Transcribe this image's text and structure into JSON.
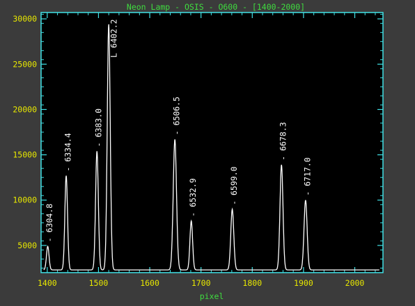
{
  "colors": {
    "background": "#3b3b3b",
    "plot_bg": "#000000",
    "frame": "#41e1e6",
    "title": "#3fdc3f",
    "tick_labels": "#e8e800",
    "xlabel": "#3fdc3f",
    "trace": "#ffffff",
    "peak_labels": "#ffffff"
  },
  "chart_data": {
    "type": "line",
    "title": "Neon Lamp - OSIS - O600 - [1400-2000]",
    "xlabel": "pixel",
    "ylabel": "",
    "xlim": [
      1388,
      2055
    ],
    "ylim": [
      2000,
      30700
    ],
    "xticks": [
      1400,
      1500,
      1600,
      1700,
      1800,
      1900,
      2000
    ],
    "yticks": [
      5000,
      10000,
      15000,
      20000,
      25000,
      30000
    ],
    "grid": false,
    "baseline": 2300,
    "x_range": [
      1393,
      2048
    ],
    "peaks": [
      {
        "x": 1401,
        "y": 4900,
        "width": 2.5,
        "label": "6304.8"
      },
      {
        "x": 1437,
        "y": 12700,
        "width": 2.6,
        "label": "6334.4"
      },
      {
        "x": 1497,
        "y": 15400,
        "width": 2.7,
        "label": "6383.0"
      },
      {
        "x": 1520,
        "y": 29400,
        "width": 2.9,
        "label": "6402.2"
      },
      {
        "x": 1649,
        "y": 16700,
        "width": 3.2,
        "label": "6506.5"
      },
      {
        "x": 1681,
        "y": 7700,
        "width": 2.6,
        "label": "6532.9"
      },
      {
        "x": 1761,
        "y": 9000,
        "width": 2.9,
        "label": "6599.0"
      },
      {
        "x": 1857,
        "y": 13900,
        "width": 2.9,
        "label": "6678.3"
      },
      {
        "x": 1904,
        "y": 10000,
        "width": 3.0,
        "label": "6717.0"
      }
    ]
  }
}
